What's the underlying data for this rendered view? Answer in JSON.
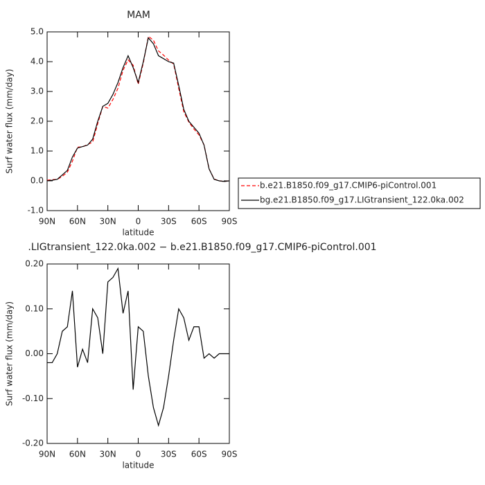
{
  "chart_data": [
    {
      "type": "line",
      "title": "MAM",
      "y_label": "Surf water flux (mm/day)",
      "x_label": "latitude",
      "x": [
        90,
        85,
        80,
        75,
        70,
        65,
        60,
        55,
        50,
        45,
        40,
        35,
        30,
        25,
        20,
        15,
        10,
        5,
        0,
        -5,
        -10,
        -15,
        -20,
        -25,
        -30,
        -35,
        -40,
        -45,
        -50,
        -55,
        -60,
        -65,
        -70,
        -75,
        -80,
        -85,
        -90
      ],
      "xlim": [
        90,
        -90
      ],
      "xticks": [
        {
          "value": 90,
          "label": "90N"
        },
        {
          "value": 60,
          "label": "60N"
        },
        {
          "value": 30,
          "label": "30N"
        },
        0,
        {
          "value": -30,
          "label": "30S"
        },
        {
          "value": -60,
          "label": "60S"
        },
        {
          "value": -90,
          "label": "90S"
        }
      ],
      "ylim": [
        -1,
        5
      ],
      "yticks": [
        {
          "value": -1,
          "label": "-1.0"
        },
        {
          "value": 0,
          "label": "0.0"
        },
        {
          "value": 1,
          "label": "1.0"
        },
        {
          "value": 2,
          "label": "2.0"
        },
        {
          "value": 3,
          "label": "3.0"
        },
        {
          "value": 4,
          "label": "4.0"
        },
        {
          "value": 5,
          "label": "5.0"
        }
      ],
      "legend": "right",
      "series": [
        {
          "name": "b.e21.B1850.f09_g17.CMIP6-piControl.001",
          "color": "#ff0000",
          "dashed": true,
          "values": [
            0.02,
            0.04,
            0.05,
            0.15,
            0.29,
            0.66,
            1.13,
            1.14,
            1.22,
            1.3,
            1.92,
            2.5,
            2.44,
            2.73,
            3.11,
            3.71,
            4.06,
            3.88,
            3.24,
            3.95,
            4.85,
            4.72,
            4.36,
            4.22,
            4.05,
            3.92,
            3.1,
            2.32,
            1.97,
            1.74,
            1.54,
            1.21,
            0.4,
            0.06,
            0,
            -0.02,
            0
          ]
        },
        {
          "name": "bg.e21.B1850.f09_g17.LIGtransient_122.0ka.002",
          "color": "#000000",
          "dashed": false,
          "values": [
            0,
            0.02,
            0.05,
            0.2,
            0.35,
            0.8,
            1.1,
            1.15,
            1.2,
            1.4,
            2.0,
            2.5,
            2.6,
            2.9,
            3.3,
            3.8,
            4.2,
            3.8,
            3.3,
            4.0,
            4.8,
            4.6,
            4.2,
            4.1,
            4.0,
            3.95,
            3.2,
            2.4,
            2.0,
            1.8,
            1.6,
            1.2,
            0.4,
            0.05,
            0,
            -0.02,
            0
          ]
        }
      ]
    },
    {
      "type": "line",
      "title": ".LIGtransient_122.0ka.002 − b.e21.B1850.f09_g17.CMIP6-piControl.001",
      "y_label": "Surf water flux (mm/day)",
      "x_label": "latitude",
      "x": [
        90,
        85,
        80,
        75,
        70,
        65,
        60,
        55,
        50,
        45,
        40,
        35,
        30,
        25,
        20,
        15,
        10,
        5,
        0,
        -5,
        -10,
        -15,
        -20,
        -25,
        -30,
        -35,
        -40,
        -45,
        -50,
        -55,
        -60,
        -65,
        -70,
        -75,
        -80,
        -85,
        -90
      ],
      "xlim": [
        90,
        -90
      ],
      "xticks": [
        {
          "value": 90,
          "label": "90N"
        },
        {
          "value": 60,
          "label": "60N"
        },
        {
          "value": 30,
          "label": "30N"
        },
        0,
        {
          "value": -30,
          "label": "30S"
        },
        {
          "value": -60,
          "label": "60S"
        },
        {
          "value": -90,
          "label": "90S"
        }
      ],
      "ylim": [
        -0.2,
        0.2
      ],
      "yticks": [
        {
          "value": -0.2,
          "label": "-0.20"
        },
        {
          "value": -0.1,
          "label": "-0.10"
        },
        {
          "value": 0,
          "label": "0.00"
        },
        {
          "value": 0.1,
          "label": "0.10"
        },
        {
          "value": 0.2,
          "label": "0.20"
        }
      ],
      "series": [
        {
          "color": "#000000",
          "dashed": false,
          "values": [
            -0.02,
            -0.02,
            0,
            0.05,
            0.06,
            0.14,
            -0.03,
            0.01,
            -0.02,
            0.1,
            0.08,
            0,
            0.16,
            0.17,
            0.19,
            0.09,
            0.14,
            -0.08,
            0.06,
            0.05,
            -0.05,
            -0.12,
            -0.16,
            -0.12,
            -0.05,
            0.03,
            0.1,
            0.08,
            0.03,
            0.06,
            0.06,
            -0.01,
            0,
            -0.01,
            0,
            0,
            0
          ]
        }
      ]
    }
  ]
}
